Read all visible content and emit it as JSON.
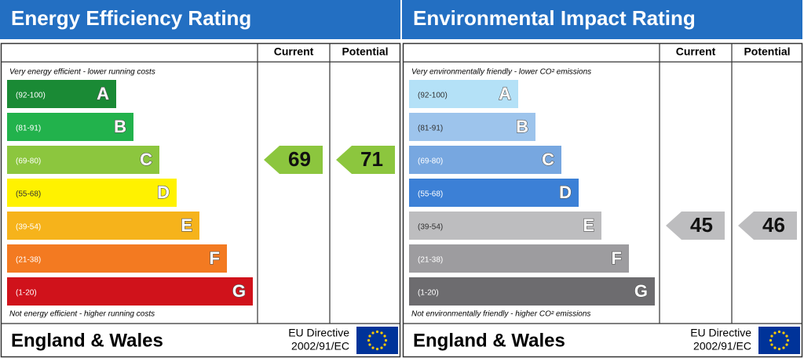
{
  "panels": [
    {
      "title": "Energy Efficiency Rating",
      "headers": [
        "Current",
        "Potential"
      ],
      "top_note": "Very energy efficient - lower running costs",
      "bottom_note": "Not energy efficient - higher running costs",
      "bands": [
        {
          "range": "(92-100)",
          "letter": "A",
          "color": "#1a8a35",
          "text_color": "#ffffff"
        },
        {
          "range": "(81-91)",
          "letter": "B",
          "color": "#22b24c",
          "text_color": "#ffffff"
        },
        {
          "range": "(69-80)",
          "letter": "C",
          "color": "#8cc63e",
          "text_color": "#ffffff"
        },
        {
          "range": "(55-68)",
          "letter": "D",
          "color": "#fff200",
          "text_color": "#333333"
        },
        {
          "range": "(39-54)",
          "letter": "E",
          "color": "#f6b31b",
          "text_color": "#ffffff"
        },
        {
          "range": "(21-38)",
          "letter": "F",
          "color": "#f37a21",
          "text_color": "#ffffff"
        },
        {
          "range": "(1-20)",
          "letter": "G",
          "color": "#d0121b",
          "text_color": "#ffffff"
        }
      ],
      "current": 69,
      "potential": 71,
      "footer": {
        "region": "England & Wales",
        "directive": "EU Directive",
        "directive_number": "2002/91/EC"
      }
    },
    {
      "title": "Environmental Impact Rating",
      "headers": [
        "Current",
        "Potential"
      ],
      "top_note": "Very environmentally friendly - lower CO² emissions",
      "bottom_note": "Not environmentally friendly - higher CO² emissions",
      "bands": [
        {
          "range": "(92-100)",
          "letter": "A",
          "color": "#b4e1f7",
          "text_color": "#333333"
        },
        {
          "range": "(81-91)",
          "letter": "B",
          "color": "#9dc4ec",
          "text_color": "#333333"
        },
        {
          "range": "(69-80)",
          "letter": "C",
          "color": "#77a7e0",
          "text_color": "#ffffff"
        },
        {
          "range": "(55-68)",
          "letter": "D",
          "color": "#3c80d6",
          "text_color": "#ffffff"
        },
        {
          "range": "(39-54)",
          "letter": "E",
          "color": "#bdbdbf",
          "text_color": "#333333"
        },
        {
          "range": "(21-38)",
          "letter": "F",
          "color": "#9d9c9f",
          "text_color": "#ffffff"
        },
        {
          "range": "(1-20)",
          "letter": "G",
          "color": "#6d6c6f",
          "text_color": "#ffffff"
        }
      ],
      "current": 45,
      "potential": 46,
      "footer": {
        "region": "England & Wales",
        "directive": "EU Directive",
        "directive_number": "2002/91/EC"
      }
    }
  ]
}
